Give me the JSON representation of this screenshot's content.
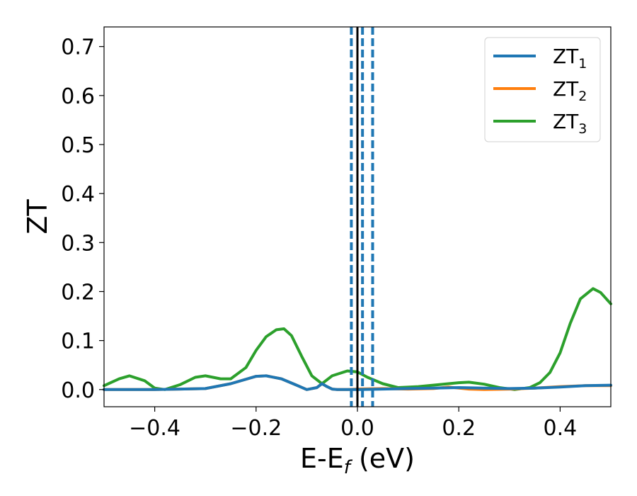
{
  "chart_data": {
    "type": "line",
    "xlabel": "E-E",
    "xlabel_sub": "f",
    "xlabel_unit": " (eV)",
    "ylabel": "ZT",
    "xlim": [
      -0.5,
      0.5
    ],
    "ylim": [
      -0.035,
      0.74
    ],
    "xticks": [
      -0.4,
      -0.2,
      0.0,
      0.2,
      0.4
    ],
    "xtick_labels": [
      "−0.4",
      "−0.2",
      "0.0",
      "0.2",
      "0.4"
    ],
    "yticks": [
      0.0,
      0.1,
      0.2,
      0.3,
      0.4,
      0.5,
      0.6,
      0.7
    ],
    "ytick_labels": [
      "0.0",
      "0.1",
      "0.2",
      "0.3",
      "0.4",
      "0.5",
      "0.6",
      "0.7"
    ],
    "grid": false,
    "legend_position": "top-right",
    "vertical_lines": [
      {
        "x": 0.0,
        "style": "solid",
        "color": "#000000"
      },
      {
        "x": -0.012,
        "style": "dashed",
        "color": "#1f77b4"
      },
      {
        "x": 0.01,
        "style": "dashed",
        "color": "#1f77b4"
      },
      {
        "x": 0.03,
        "style": "dashed",
        "color": "#1f77b4"
      }
    ],
    "series": [
      {
        "name": "ZT",
        "name_sub": "1",
        "color": "#1f77b4",
        "x": [
          -0.5,
          -0.45,
          -0.4,
          -0.35,
          -0.3,
          -0.25,
          -0.2,
          -0.18,
          -0.15,
          -0.12,
          -0.1,
          -0.08,
          -0.07,
          -0.06,
          -0.05,
          -0.04,
          -0.02,
          0.0,
          0.05,
          0.1,
          0.15,
          0.2,
          0.25,
          0.3,
          0.35,
          0.4,
          0.45,
          0.5
        ],
        "y": [
          0.0,
          0.0,
          0.0,
          0.001,
          0.002,
          0.012,
          0.027,
          0.028,
          0.022,
          0.009,
          0.0,
          0.004,
          0.012,
          0.006,
          0.001,
          0.0,
          0.0,
          0.0,
          0.001,
          0.002,
          0.003,
          0.004,
          0.003,
          0.002,
          0.003,
          0.005,
          0.008,
          0.009
        ]
      },
      {
        "name": "ZT",
        "name_sub": "2",
        "color": "#ff7f0e",
        "x": [
          -0.5,
          -0.45,
          -0.4,
          -0.35,
          -0.3,
          -0.25,
          -0.2,
          -0.18,
          -0.15,
          -0.12,
          -0.1,
          -0.08,
          -0.07,
          -0.06,
          -0.05,
          -0.04,
          -0.02,
          0.0,
          0.05,
          0.1,
          0.15,
          0.18,
          0.22,
          0.25,
          0.3,
          0.35,
          0.4,
          0.45,
          0.5
        ],
        "y": [
          0.0,
          0.0,
          0.0,
          0.001,
          0.002,
          0.012,
          0.027,
          0.028,
          0.022,
          0.009,
          0.0,
          0.004,
          0.012,
          0.006,
          0.001,
          0.0,
          0.0,
          0.001,
          0.002,
          0.001,
          0.002,
          0.005,
          0.001,
          0.0,
          0.001,
          0.003,
          0.006,
          0.008,
          0.008
        ]
      },
      {
        "name": "ZT",
        "name_sub": "3",
        "color": "#2ca02c",
        "x": [
          -0.5,
          -0.47,
          -0.45,
          -0.42,
          -0.4,
          -0.38,
          -0.35,
          -0.32,
          -0.3,
          -0.27,
          -0.25,
          -0.22,
          -0.2,
          -0.18,
          -0.16,
          -0.145,
          -0.13,
          -0.11,
          -0.09,
          -0.07,
          -0.05,
          -0.02,
          0.0,
          0.02,
          0.05,
          0.08,
          0.12,
          0.16,
          0.2,
          0.22,
          0.25,
          0.28,
          0.31,
          0.34,
          0.36,
          0.38,
          0.4,
          0.42,
          0.44,
          0.465,
          0.48,
          0.5
        ],
        "y": [
          0.008,
          0.022,
          0.028,
          0.018,
          0.003,
          0.0,
          0.01,
          0.025,
          0.028,
          0.022,
          0.022,
          0.045,
          0.08,
          0.108,
          0.122,
          0.124,
          0.11,
          0.068,
          0.028,
          0.012,
          0.028,
          0.038,
          0.036,
          0.025,
          0.012,
          0.004,
          0.006,
          0.01,
          0.014,
          0.015,
          0.011,
          0.004,
          0.0,
          0.004,
          0.014,
          0.035,
          0.075,
          0.135,
          0.185,
          0.206,
          0.198,
          0.175
        ]
      }
    ]
  }
}
